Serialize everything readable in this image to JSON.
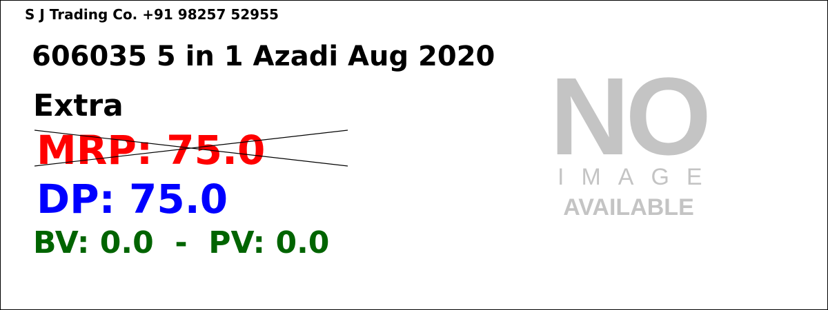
{
  "seller": {
    "name_phone": "S J Trading Co. +91 98257 52955"
  },
  "product": {
    "title": "606035 5 in 1 Azadi Aug 2020",
    "category": "Extra"
  },
  "pricing": {
    "mrp_text": "MRP: 75.0",
    "dp_text": "DP: 75.0",
    "bv_pv_text": "BV: 0.0  -  PV: 0.0"
  },
  "placeholder_image": {
    "line1": "NO",
    "line2": "IMAGE",
    "line3": "AVAILABLE"
  },
  "colors": {
    "mrp": "#ff0000",
    "dp": "#0000ff",
    "bv_pv": "#006400",
    "placeholder": "#c4c4c4"
  }
}
